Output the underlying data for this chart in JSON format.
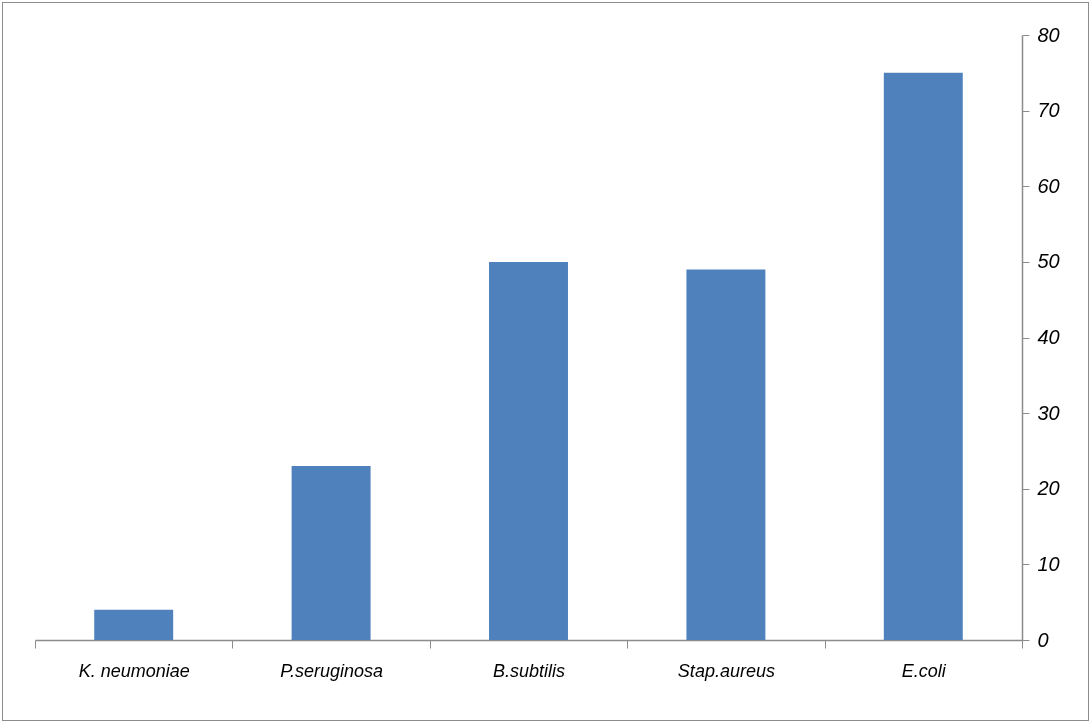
{
  "chart_data": {
    "type": "bar",
    "categories": [
      "K. neumoniae",
      "P.seruginosa",
      "B.subtilis",
      "Stap.aureus",
      "E.coli"
    ],
    "values": [
      4,
      23,
      50,
      49,
      75
    ],
    "color": "#4f81bd",
    "ylim": [
      0,
      80
    ],
    "yticks": [
      0,
      10,
      20,
      30,
      40,
      50,
      60,
      70,
      80
    ],
    "grid": false
  }
}
